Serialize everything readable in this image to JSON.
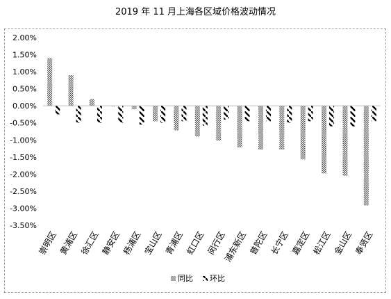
{
  "chart_data": {
    "type": "bar",
    "title": "2019 年 11 月上海各区域价格波动情况",
    "categories": [
      "崇明区",
      "黄浦区",
      "徐汇区",
      "静安区",
      "杨浦区",
      "宝山区",
      "青浦区",
      "虹口区",
      "闵行区",
      "浦东新区",
      "普陀区",
      "长宁区",
      "嘉定区",
      "松江区",
      "金山区",
      "奉贤区"
    ],
    "series": [
      {
        "name": "同比",
        "values": [
          1.4,
          0.9,
          0.2,
          0.0,
          -0.1,
          -0.45,
          -0.72,
          -0.9,
          -1.02,
          -1.22,
          -1.28,
          -1.28,
          -1.57,
          -1.98,
          -2.05,
          -2.92
        ],
        "pattern": "dots"
      },
      {
        "name": "环比",
        "values": [
          -0.25,
          -0.5,
          -0.5,
          -0.5,
          -0.55,
          -0.5,
          -0.45,
          -0.58,
          -0.4,
          -0.45,
          -0.45,
          -0.5,
          -0.45,
          -0.6,
          -0.6,
          -0.45
        ],
        "pattern": "slashes"
      }
    ],
    "ylim": [
      -3.5,
      2.0
    ],
    "yticks": [
      "2.00%",
      "1.50%",
      "1.00%",
      "0.50%",
      "0.00%",
      "-0.50%",
      "-1.00%",
      "-1.50%",
      "-2.00%",
      "-2.50%",
      "-3.00%",
      "-3.50%"
    ],
    "grid": false,
    "legend_position": "bottom",
    "colors": {
      "bar": "#555555",
      "axis": "#bfbfbf",
      "frame": "#9a9a9a"
    }
  }
}
